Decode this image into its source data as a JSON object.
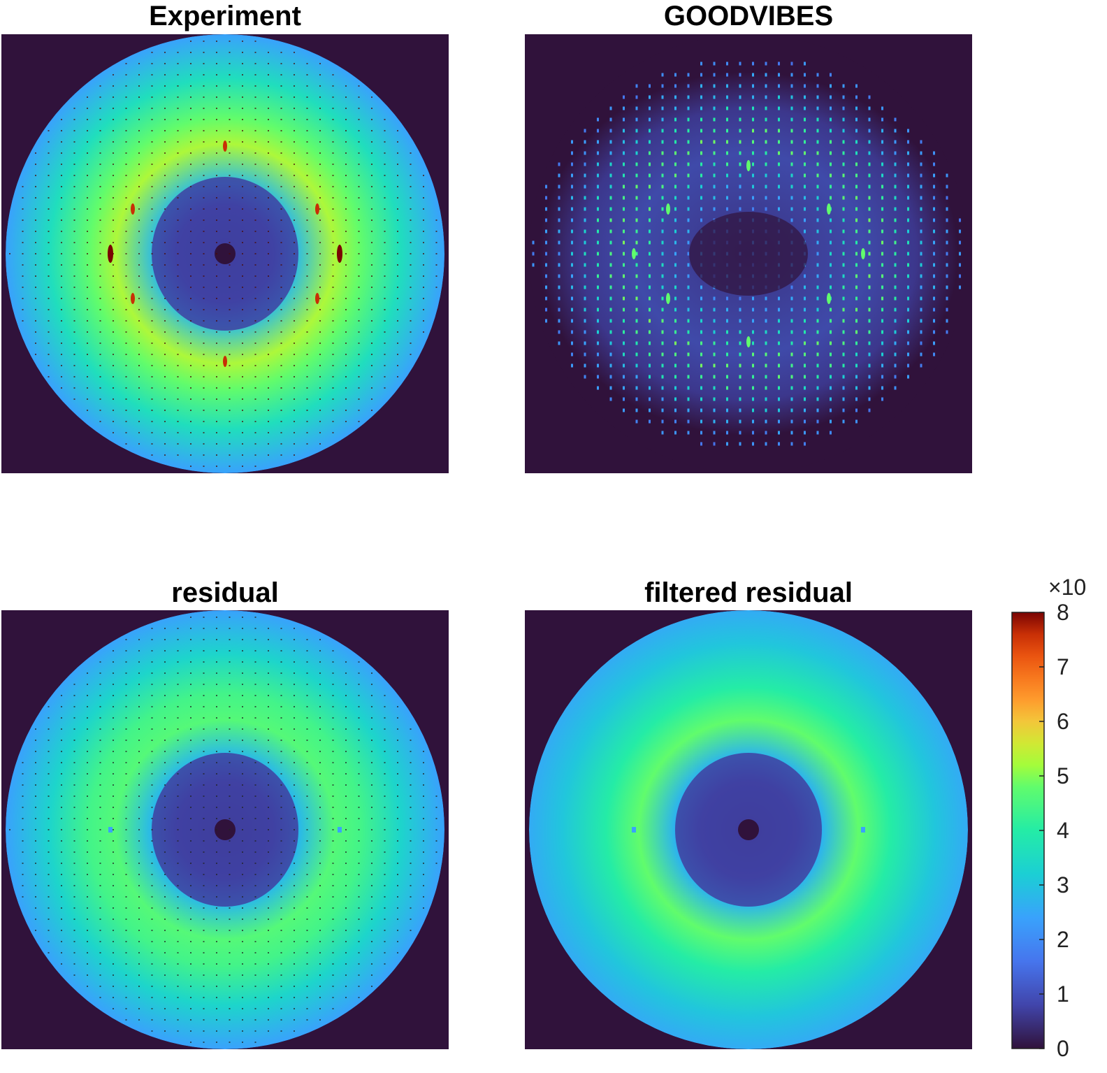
{
  "chart_data": {
    "type": "heatmap",
    "colormap": "turbo",
    "background_color": "#30123b",
    "panels": [
      {
        "title": "Experiment",
        "pattern": "experiment"
      },
      {
        "title": "GOODVIBES",
        "pattern": "goodvibes"
      },
      {
        "title": "residual",
        "pattern": "residual"
      },
      {
        "title": "filtered residual",
        "pattern": "filtered"
      }
    ],
    "colorbar": {
      "range": [
        0,
        8
      ],
      "ticks": [
        "0",
        "1",
        "2",
        "3",
        "4",
        "5",
        "6",
        "7",
        "8"
      ],
      "multiplier": "×10"
    }
  }
}
